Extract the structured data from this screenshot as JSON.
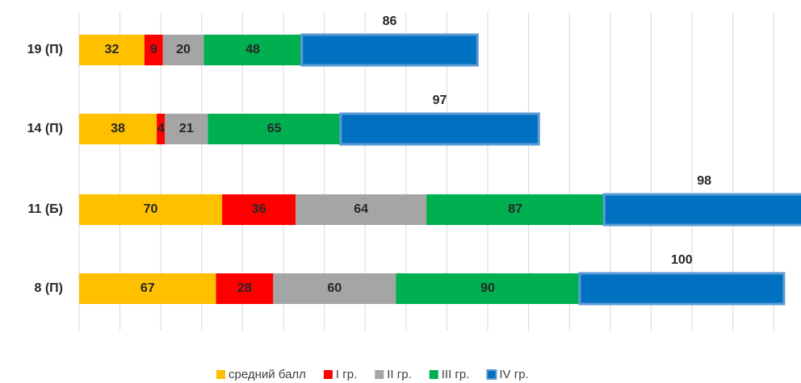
{
  "chart_data": {
    "type": "stacked_barh",
    "categories": [
      "19 (П)",
      "14 (П)",
      "11 (Б)",
      "8 (П)"
    ],
    "series": [
      {
        "name": "средний балл",
        "color": "#ffc000",
        "values": [
          32,
          38,
          70,
          67
        ]
      },
      {
        "name": "I гр.",
        "color": "#ff0000",
        "values": [
          9,
          4,
          36,
          28
        ]
      },
      {
        "name": "II гр.",
        "color": "#a5a5a5",
        "values": [
          20,
          21,
          64,
          60
        ]
      },
      {
        "name": "III гр.",
        "color": "#00b050",
        "values": [
          48,
          65,
          87,
          90
        ]
      },
      {
        "name": "IV гр.",
        "color": "#0070c0",
        "values": [
          86,
          97,
          98,
          100
        ]
      }
    ],
    "xlim": [
      0,
      360
    ],
    "xticks": [
      0,
      20,
      40,
      60,
      80,
      100,
      120,
      140,
      160,
      180,
      200,
      220,
      240,
      260,
      280,
      300,
      320,
      340
    ],
    "grid": true
  }
}
